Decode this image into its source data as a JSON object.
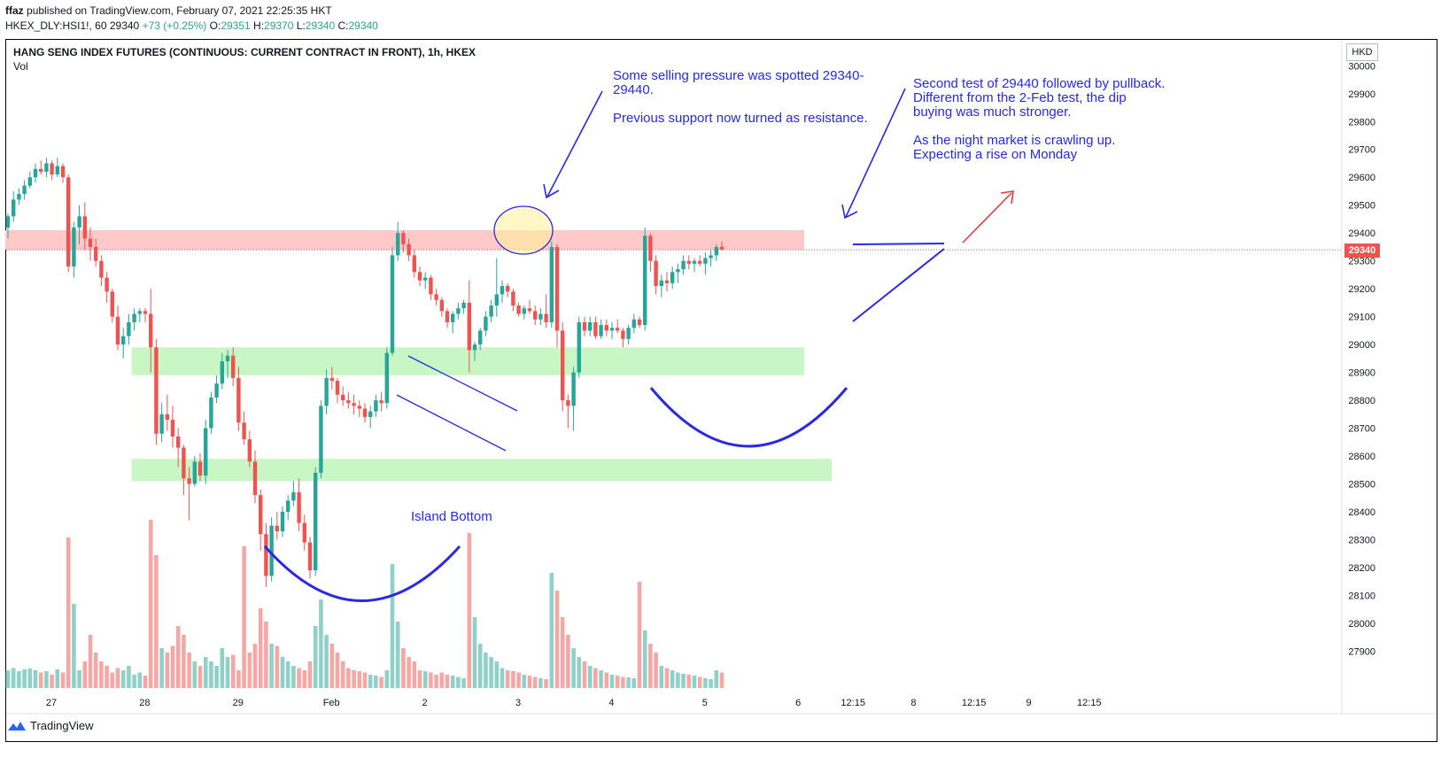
{
  "header": {
    "author": "ffaz",
    "published": "published on TradingView.com, February 07, 2021 22:25:35 HKT",
    "symbol_line": "HKEX_DLY:HSI1!, 60",
    "last": "29340",
    "change": "+73 (+0.25%)",
    "o_label": "O:",
    "o_val": "29351",
    "h_label": "H:",
    "h_val": "29370",
    "l_label": "L:",
    "l_val": "29340",
    "c_label": "C:",
    "c_val": "29340"
  },
  "legend": {
    "title": "HANG SENG INDEX FUTURES (CONTINUOUS: CURRENT CONTRACT IN FRONT), 1h, HKEX",
    "vol": "Vol"
  },
  "currency": "HKD",
  "price_badge": "29340",
  "footer": {
    "brand": "TradingView"
  },
  "annotations": {
    "selling": "Some selling pressure was spotted 29340-\n29440.\n\nPrevious support now turned as resistance.",
    "second_test": "Second test of 29440 followed by pullback.\nDifferent from the 2-Feb test, the dip\nbuying was much stronger.\n\nAs the night market is crawling up.\nExpecting a rise on Monday",
    "island": "Island Bottom"
  },
  "colors": {
    "up": "#26a69a",
    "down": "#ef5350",
    "annot": "#2828e6",
    "resistance": "#ffc9c9",
    "support": "#c8f7c5"
  },
  "chart_data": {
    "type": "candlestick",
    "yaxis_ticks": [
      "30000",
      "29900",
      "29800",
      "29700",
      "29600",
      "29500",
      "29400",
      "29300",
      "29200",
      "29100",
      "29000",
      "28900",
      "28800",
      "28700",
      "28600",
      "28500",
      "28400",
      "28300",
      "28200",
      "28100",
      "28000",
      "27900"
    ],
    "ylim": [
      27860,
      30020
    ],
    "xaxis_ticks": [
      {
        "label": "27",
        "i": 5
      },
      {
        "label": "28",
        "i": 22
      },
      {
        "label": "29",
        "i": 39
      },
      {
        "label": "Feb",
        "i": 56
      },
      {
        "label": "2",
        "i": 73
      },
      {
        "label": "3",
        "i": 90
      },
      {
        "label": "4",
        "i": 107
      },
      {
        "label": "5",
        "i": 124
      },
      {
        "label": "6",
        "i": 141
      },
      {
        "label": "12:15",
        "i": 151
      },
      {
        "label": "8",
        "i": 162
      },
      {
        "label": "12:15",
        "i": 173
      },
      {
        "label": "9",
        "i": 183
      },
      {
        "label": "12:15",
        "i": 194
      }
    ],
    "last_price": 29340,
    "zones": [
      {
        "kind": "resistance",
        "from": 29340,
        "to": 29410,
        "i_start": 0,
        "i_end": 145
      },
      {
        "kind": "support",
        "from": 28890,
        "to": 28990,
        "i_start": 23,
        "i_end": 145
      },
      {
        "kind": "support",
        "from": 28510,
        "to": 28590,
        "i_start": 23,
        "i_end": 150
      }
    ],
    "candles": [
      {
        "o": 29420,
        "h": 29470,
        "l": 29380,
        "c": 29460
      },
      {
        "o": 29460,
        "h": 29550,
        "l": 29440,
        "c": 29520
      },
      {
        "o": 29520,
        "h": 29560,
        "l": 29500,
        "c": 29540
      },
      {
        "o": 29540,
        "h": 29590,
        "l": 29520,
        "c": 29570
      },
      {
        "o": 29570,
        "h": 29620,
        "l": 29560,
        "c": 29600
      },
      {
        "o": 29600,
        "h": 29650,
        "l": 29580,
        "c": 29630
      },
      {
        "o": 29630,
        "h": 29660,
        "l": 29610,
        "c": 29620
      },
      {
        "o": 29620,
        "h": 29670,
        "l": 29600,
        "c": 29650
      },
      {
        "o": 29650,
        "h": 29660,
        "l": 29590,
        "c": 29610
      },
      {
        "o": 29610,
        "h": 29670,
        "l": 29600,
        "c": 29640
      },
      {
        "o": 29640,
        "h": 29650,
        "l": 29580,
        "c": 29600
      },
      {
        "o": 29600,
        "h": 29610,
        "l": 29260,
        "c": 29280
      },
      {
        "o": 29280,
        "h": 29440,
        "l": 29240,
        "c": 29420
      },
      {
        "o": 29420,
        "h": 29500,
        "l": 29360,
        "c": 29460
      },
      {
        "o": 29460,
        "h": 29510,
        "l": 29340,
        "c": 29380
      },
      {
        "o": 29380,
        "h": 29420,
        "l": 29300,
        "c": 29350
      },
      {
        "o": 29350,
        "h": 29380,
        "l": 29280,
        "c": 29300
      },
      {
        "o": 29300,
        "h": 29320,
        "l": 29210,
        "c": 29240
      },
      {
        "o": 29240,
        "h": 29260,
        "l": 29150,
        "c": 29190
      },
      {
        "o": 29190,
        "h": 29200,
        "l": 29080,
        "c": 29100
      },
      {
        "o": 29100,
        "h": 29140,
        "l": 28980,
        "c": 29000
      },
      {
        "o": 29000,
        "h": 29060,
        "l": 28950,
        "c": 29030
      },
      {
        "o": 29030,
        "h": 29110,
        "l": 29000,
        "c": 29080
      },
      {
        "o": 29080,
        "h": 29130,
        "l": 29050,
        "c": 29110
      },
      {
        "o": 29110,
        "h": 29130,
        "l": 29080,
        "c": 29120
      },
      {
        "o": 29120,
        "h": 29130,
        "l": 29080,
        "c": 29110
      },
      {
        "o": 29110,
        "h": 29200,
        "l": 28900,
        "c": 28990
      },
      {
        "o": 28990,
        "h": 29020,
        "l": 28640,
        "c": 28680
      },
      {
        "o": 28680,
        "h": 28790,
        "l": 28650,
        "c": 28750
      },
      {
        "o": 28750,
        "h": 28820,
        "l": 28690,
        "c": 28730
      },
      {
        "o": 28730,
        "h": 28780,
        "l": 28630,
        "c": 28670
      },
      {
        "o": 28670,
        "h": 28700,
        "l": 28560,
        "c": 28630
      },
      {
        "o": 28630,
        "h": 28640,
        "l": 28460,
        "c": 28520
      },
      {
        "o": 28520,
        "h": 28560,
        "l": 28370,
        "c": 28500
      },
      {
        "o": 28500,
        "h": 28600,
        "l": 28490,
        "c": 28580
      },
      {
        "o": 28580,
        "h": 28610,
        "l": 28510,
        "c": 28530
      },
      {
        "o": 28530,
        "h": 28730,
        "l": 28500,
        "c": 28700
      },
      {
        "o": 28700,
        "h": 28830,
        "l": 28680,
        "c": 28810
      },
      {
        "o": 28810,
        "h": 28890,
        "l": 28790,
        "c": 28860
      },
      {
        "o": 28860,
        "h": 28970,
        "l": 28840,
        "c": 28940
      },
      {
        "o": 28940,
        "h": 28980,
        "l": 28880,
        "c": 28960
      },
      {
        "o": 28960,
        "h": 28990,
        "l": 28850,
        "c": 28880
      },
      {
        "o": 28880,
        "h": 28920,
        "l": 28690,
        "c": 28720
      },
      {
        "o": 28720,
        "h": 28760,
        "l": 28640,
        "c": 28660
      },
      {
        "o": 28660,
        "h": 28690,
        "l": 28560,
        "c": 28580
      },
      {
        "o": 28580,
        "h": 28620,
        "l": 28430,
        "c": 28460
      },
      {
        "o": 28460,
        "h": 28480,
        "l": 28260,
        "c": 28320
      },
      {
        "o": 28320,
        "h": 28360,
        "l": 28130,
        "c": 28170
      },
      {
        "o": 28170,
        "h": 28380,
        "l": 28150,
        "c": 28350
      },
      {
        "o": 28350,
        "h": 28400,
        "l": 28300,
        "c": 28330
      },
      {
        "o": 28330,
        "h": 28420,
        "l": 28310,
        "c": 28400
      },
      {
        "o": 28400,
        "h": 28460,
        "l": 28370,
        "c": 28440
      },
      {
        "o": 28440,
        "h": 28510,
        "l": 28420,
        "c": 28470
      },
      {
        "o": 28470,
        "h": 28520,
        "l": 28330,
        "c": 28360
      },
      {
        "o": 28360,
        "h": 28390,
        "l": 28260,
        "c": 28290
      },
      {
        "o": 28290,
        "h": 28310,
        "l": 28160,
        "c": 28190
      },
      {
        "o": 28190,
        "h": 28560,
        "l": 28170,
        "c": 28540
      },
      {
        "o": 28540,
        "h": 28800,
        "l": 28520,
        "c": 28780
      },
      {
        "o": 28780,
        "h": 28910,
        "l": 28750,
        "c": 28880
      },
      {
        "o": 28880,
        "h": 28920,
        "l": 28840,
        "c": 28870
      },
      {
        "o": 28870,
        "h": 28880,
        "l": 28790,
        "c": 28820
      },
      {
        "o": 28820,
        "h": 28850,
        "l": 28780,
        "c": 28800
      },
      {
        "o": 28800,
        "h": 28830,
        "l": 28770,
        "c": 28790
      },
      {
        "o": 28790,
        "h": 28820,
        "l": 28750,
        "c": 28780
      },
      {
        "o": 28780,
        "h": 28800,
        "l": 28740,
        "c": 28770
      },
      {
        "o": 28770,
        "h": 28790,
        "l": 28720,
        "c": 28740
      },
      {
        "o": 28740,
        "h": 28780,
        "l": 28700,
        "c": 28760
      },
      {
        "o": 28760,
        "h": 28820,
        "l": 28740,
        "c": 28800
      },
      {
        "o": 28800,
        "h": 28830,
        "l": 28760,
        "c": 28790
      },
      {
        "o": 28790,
        "h": 28990,
        "l": 28770,
        "c": 28970
      },
      {
        "o": 28970,
        "h": 29350,
        "l": 28960,
        "c": 29320
      },
      {
        "o": 29320,
        "h": 29440,
        "l": 29300,
        "c": 29400
      },
      {
        "o": 29400,
        "h": 29410,
        "l": 29330,
        "c": 29360
      },
      {
        "o": 29360,
        "h": 29380,
        "l": 29300,
        "c": 29320
      },
      {
        "o": 29320,
        "h": 29340,
        "l": 29240,
        "c": 29260
      },
      {
        "o": 29260,
        "h": 29280,
        "l": 29210,
        "c": 29230
      },
      {
        "o": 29230,
        "h": 29260,
        "l": 29200,
        "c": 29240
      },
      {
        "o": 29240,
        "h": 29250,
        "l": 29160,
        "c": 29180
      },
      {
        "o": 29180,
        "h": 29200,
        "l": 29140,
        "c": 29160
      },
      {
        "o": 29160,
        "h": 29170,
        "l": 29100,
        "c": 29120
      },
      {
        "o": 29120,
        "h": 29130,
        "l": 29060,
        "c": 29080
      },
      {
        "o": 29080,
        "h": 29120,
        "l": 29040,
        "c": 29110
      },
      {
        "o": 29110,
        "h": 29150,
        "l": 29090,
        "c": 29130
      },
      {
        "o": 29130,
        "h": 29160,
        "l": 29110,
        "c": 29150
      },
      {
        "o": 29150,
        "h": 29230,
        "l": 28900,
        "c": 28980
      },
      {
        "o": 28980,
        "h": 29010,
        "l": 28940,
        "c": 29000
      },
      {
        "o": 29000,
        "h": 29060,
        "l": 28980,
        "c": 29050
      },
      {
        "o": 29050,
        "h": 29120,
        "l": 29030,
        "c": 29100
      },
      {
        "o": 29100,
        "h": 29160,
        "l": 29080,
        "c": 29140
      },
      {
        "o": 29140,
        "h": 29310,
        "l": 29100,
        "c": 29180
      },
      {
        "o": 29180,
        "h": 29230,
        "l": 29150,
        "c": 29210
      },
      {
        "o": 29210,
        "h": 29220,
        "l": 29170,
        "c": 29190
      },
      {
        "o": 29190,
        "h": 29200,
        "l": 29120,
        "c": 29140
      },
      {
        "o": 29140,
        "h": 29150,
        "l": 29100,
        "c": 29110
      },
      {
        "o": 29110,
        "h": 29140,
        "l": 29090,
        "c": 29130
      },
      {
        "o": 29130,
        "h": 29160,
        "l": 29110,
        "c": 29120
      },
      {
        "o": 29120,
        "h": 29140,
        "l": 29070,
        "c": 29090
      },
      {
        "o": 29090,
        "h": 29130,
        "l": 29070,
        "c": 29110
      },
      {
        "o": 29110,
        "h": 29180,
        "l": 29060,
        "c": 29080
      },
      {
        "o": 29080,
        "h": 29370,
        "l": 29060,
        "c": 29350
      },
      {
        "o": 29350,
        "h": 29360,
        "l": 28990,
        "c": 29050
      },
      {
        "o": 29050,
        "h": 29080,
        "l": 28760,
        "c": 28800
      },
      {
        "o": 28800,
        "h": 28820,
        "l": 28700,
        "c": 28780
      },
      {
        "o": 28780,
        "h": 28920,
        "l": 28690,
        "c": 28900
      },
      {
        "o": 28900,
        "h": 29100,
        "l": 28880,
        "c": 29080
      },
      {
        "o": 29080,
        "h": 29100,
        "l": 29030,
        "c": 29050
      },
      {
        "o": 29050,
        "h": 29100,
        "l": 29030,
        "c": 29080
      },
      {
        "o": 29080,
        "h": 29100,
        "l": 29020,
        "c": 29030
      },
      {
        "o": 29030,
        "h": 29090,
        "l": 29020,
        "c": 29070
      },
      {
        "o": 29070,
        "h": 29090,
        "l": 29030,
        "c": 29050
      },
      {
        "o": 29050,
        "h": 29080,
        "l": 29020,
        "c": 29060
      },
      {
        "o": 29060,
        "h": 29090,
        "l": 29040,
        "c": 29050
      },
      {
        "o": 29050,
        "h": 29060,
        "l": 28990,
        "c": 29020
      },
      {
        "o": 29020,
        "h": 29070,
        "l": 29000,
        "c": 29060
      },
      {
        "o": 29060,
        "h": 29110,
        "l": 29040,
        "c": 29090
      },
      {
        "o": 29090,
        "h": 29100,
        "l": 29060,
        "c": 29070
      },
      {
        "o": 29070,
        "h": 29420,
        "l": 29050,
        "c": 29390
      },
      {
        "o": 29390,
        "h": 29400,
        "l": 29260,
        "c": 29300
      },
      {
        "o": 29300,
        "h": 29320,
        "l": 29180,
        "c": 29210
      },
      {
        "o": 29210,
        "h": 29250,
        "l": 29170,
        "c": 29230
      },
      {
        "o": 29230,
        "h": 29260,
        "l": 29190,
        "c": 29220
      },
      {
        "o": 29220,
        "h": 29280,
        "l": 29200,
        "c": 29260
      },
      {
        "o": 29260,
        "h": 29290,
        "l": 29220,
        "c": 29270
      },
      {
        "o": 29270,
        "h": 29320,
        "l": 29250,
        "c": 29300
      },
      {
        "o": 29300,
        "h": 29320,
        "l": 29270,
        "c": 29290
      },
      {
        "o": 29290,
        "h": 29310,
        "l": 29260,
        "c": 29300
      },
      {
        "o": 29300,
        "h": 29320,
        "l": 29280,
        "c": 29290
      },
      {
        "o": 29290,
        "h": 29330,
        "l": 29250,
        "c": 29310
      },
      {
        "o": 29310,
        "h": 29340,
        "l": 29280,
        "c": 29320
      },
      {
        "o": 29320,
        "h": 29360,
        "l": 29300,
        "c": 29350
      },
      {
        "o": 29351,
        "h": 29370,
        "l": 29340,
        "c": 29340
      }
    ],
    "volumes": [
      40,
      45,
      38,
      42,
      44,
      40,
      35,
      38,
      30,
      42,
      35,
      340,
      190,
      40,
      60,
      120,
      80,
      60,
      50,
      35,
      45,
      40,
      50,
      30,
      35,
      28,
      380,
      300,
      90,
      80,
      95,
      140,
      120,
      80,
      60,
      50,
      70,
      60,
      50,
      90,
      70,
      75,
      40,
      320,
      80,
      100,
      180,
      150,
      100,
      95,
      70,
      60,
      50,
      45,
      40,
      60,
      140,
      200,
      120,
      100,
      80,
      60,
      45,
      40,
      38,
      35,
      30,
      28,
      25,
      40,
      280,
      150,
      90,
      70,
      60,
      40,
      38,
      35,
      30,
      35,
      30,
      28,
      25,
      22,
      350,
      160,
      100,
      80,
      70,
      60,
      45,
      40,
      38,
      35,
      30,
      28,
      25,
      22,
      20,
      260,
      220,
      160,
      120,
      90,
      70,
      60,
      50,
      45,
      40,
      35,
      30,
      28,
      25,
      24,
      22,
      240,
      130,
      100,
      80,
      50,
      45,
      40,
      35,
      32,
      30,
      28,
      25,
      22,
      20,
      40,
      35,
      30,
      28,
      25,
      20,
      18,
      16
    ]
  }
}
